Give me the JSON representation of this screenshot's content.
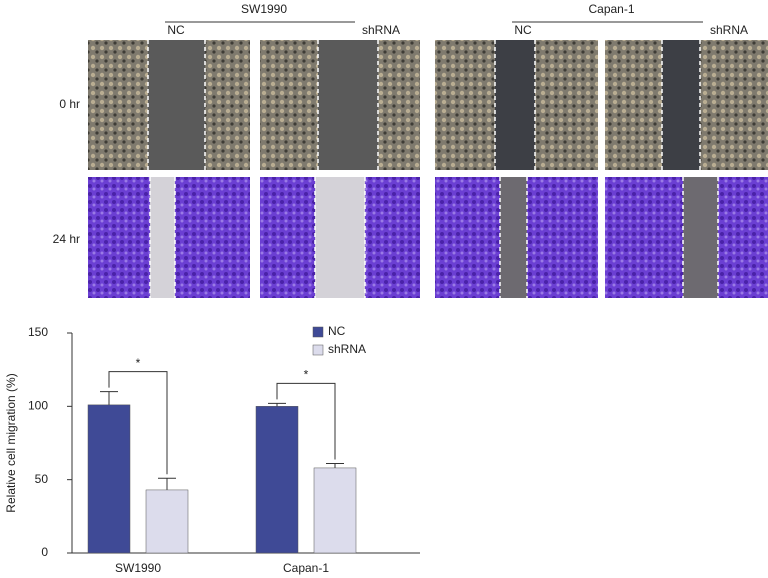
{
  "figure": {
    "groups": [
      {
        "title": "SW1990",
        "conditions": [
          "NC",
          "shRNA"
        ]
      },
      {
        "title": "Capan-1",
        "conditions": [
          "NC",
          "shRNA"
        ]
      }
    ],
    "rows": [
      "0 hr",
      "24 hr"
    ]
  },
  "chart_data": {
    "type": "bar",
    "y_label": "Relative cell migration (%)",
    "categories": [
      "SW1990",
      "Capan-1"
    ],
    "series": [
      {
        "name": "NC",
        "color": "#3f4a96",
        "values": [
          101,
          100
        ],
        "errors": [
          9,
          2
        ]
      },
      {
        "name": "shRNA",
        "color": "#dcdcec",
        "values": [
          43,
          58
        ],
        "errors": [
          8,
          3
        ]
      }
    ],
    "ylim": [
      0,
      150
    ],
    "yticks": [
      0,
      50,
      100,
      150
    ],
    "annotations": [
      "*",
      "*"
    ],
    "legend": "top-right"
  }
}
